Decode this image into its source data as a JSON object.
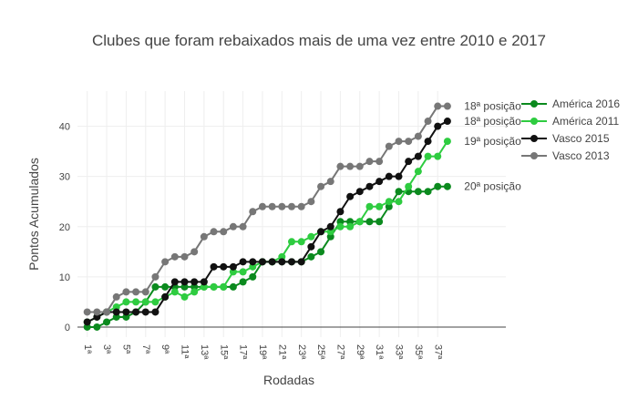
{
  "chart_data": {
    "type": "line",
    "title": "Clubes que foram rebaixados mais de uma vez entre 2010 e 2017",
    "xlabel": "Rodadas",
    "ylabel": "Pontos Acumulados",
    "xlim": [
      -1,
      43
    ],
    "ylim": [
      -2,
      47
    ],
    "x_tick_labels": [
      "1ª",
      "3ª",
      "5ª",
      "7ª",
      "9ª",
      "11ª",
      "13ª",
      "15ª",
      "17ª",
      "19ª",
      "21ª",
      "23ª",
      "25ª",
      "27ª",
      "29ª",
      "31ª",
      "33ª",
      "35ª",
      "37ª"
    ],
    "y_ticks": [
      0,
      10,
      20,
      30,
      40
    ],
    "grid": true,
    "legend_position": "right",
    "series": [
      {
        "name": "América 2016",
        "color": "#0b8a1e",
        "values": [
          0,
          0,
          1,
          2,
          2,
          3,
          5,
          8,
          8,
          8,
          8,
          8,
          8,
          8,
          8,
          8,
          9,
          10,
          13,
          13,
          13,
          13,
          13,
          14,
          15,
          18,
          21,
          21,
          21,
          21,
          21,
          24,
          27,
          27,
          27,
          27,
          28,
          28
        ]
      },
      {
        "name": "América 2011",
        "color": "#2ecc40",
        "values": [
          1,
          2,
          3,
          4,
          5,
          5,
          5,
          5,
          6,
          7,
          6,
          7,
          8,
          8,
          8,
          11,
          11,
          12,
          13,
          13,
          14,
          17,
          17,
          18,
          19,
          19,
          20,
          20,
          21,
          24,
          24,
          25,
          25,
          28,
          31,
          34,
          34,
          37
        ]
      },
      {
        "name": "Vasco 2015",
        "color": "#111111",
        "values": [
          1,
          2,
          3,
          3,
          3,
          3,
          3,
          3,
          6,
          9,
          9,
          9,
          9,
          12,
          12,
          12,
          13,
          13,
          13,
          13,
          13,
          13,
          13,
          16,
          19,
          20,
          23,
          26,
          27,
          28,
          29,
          30,
          30,
          33,
          34,
          37,
          40,
          41
        ]
      },
      {
        "name": "Vasco 2013",
        "color": "#777777",
        "values": [
          3,
          3,
          3,
          6,
          7,
          7,
          7,
          10,
          13,
          14,
          14,
          15,
          18,
          19,
          19,
          20,
          20,
          23,
          24,
          24,
          24,
          24,
          24,
          25,
          28,
          29,
          32,
          32,
          32,
          33,
          33,
          36,
          37,
          37,
          38,
          41,
          44,
          44
        ]
      }
    ],
    "annotations": [
      {
        "text": "18ª posição",
        "x": 39,
        "y": 44
      },
      {
        "text": "18ª posição",
        "x": 39,
        "y": 41
      },
      {
        "text": "19ª posição",
        "x": 39,
        "y": 37
      },
      {
        "text": "20ª posição",
        "x": 39,
        "y": 28
      }
    ]
  }
}
